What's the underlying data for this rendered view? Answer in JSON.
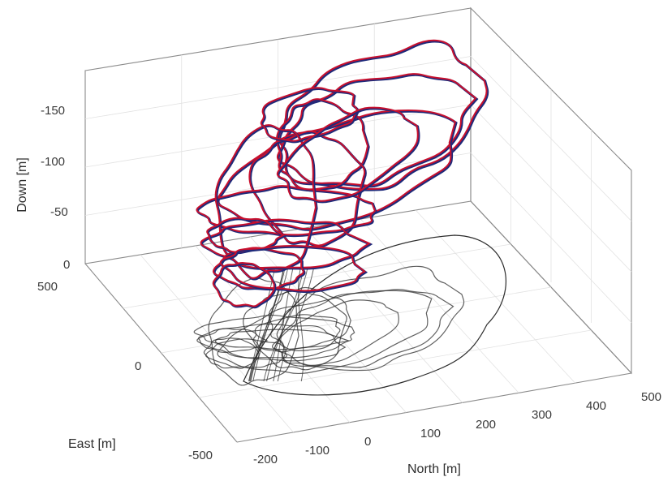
{
  "chart_data": {
    "type": "line3d",
    "title": "",
    "xlabel": "North [m]",
    "ylabel": "East [m]",
    "zlabel": "Down [m]",
    "x_ticks": [
      "-200",
      "-100",
      "0",
      "100",
      "200",
      "300",
      "400",
      "500"
    ],
    "y_ticks": [
      "-500",
      "0",
      "500"
    ],
    "z_ticks": [
      "0",
      "-50",
      "-100",
      "-150"
    ],
    "xlim": [
      -200,
      500
    ],
    "ylim": [
      -500,
      500
    ],
    "zlim": [
      -190,
      0
    ],
    "z_direction": "reversed (up is negative Down)",
    "grid": true,
    "series": [
      {
        "label_style": "estimated trajectory",
        "color": "#c8102e"
      },
      {
        "label_style": "reference trajectory",
        "color": "#1f2a7a"
      },
      {
        "label_style": "ground projection",
        "color": "#2b2b2b"
      }
    ],
    "tracks_sample": [
      {
        "north": [
          -20,
          60,
          160,
          300,
          420,
          470,
          460,
          300,
          120,
          0,
          -40
        ],
        "east": [
          -100,
          -60,
          20,
          150,
          250,
          300,
          330,
          260,
          120,
          0,
          -80
        ],
        "down": [
          -30,
          -50,
          -80,
          -110,
          -140,
          -180,
          -185,
          -150,
          -90,
          -40,
          -30
        ]
      }
    ]
  }
}
